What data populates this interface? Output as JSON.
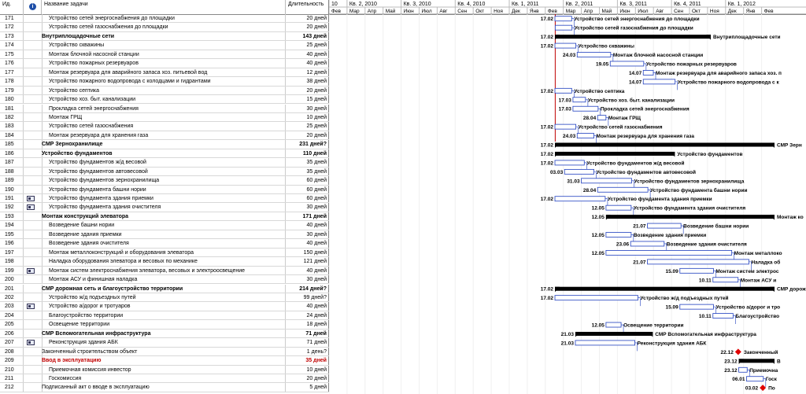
{
  "columns": {
    "id": "Ид.",
    "name": "Название задачи",
    "duration": "Длительность"
  },
  "timescale": {
    "quarters": [
      {
        "label": "10"
      },
      {
        "label": "Кв. 2, 2010"
      },
      {
        "label": "Кв. 3, 2010"
      },
      {
        "label": "Кв. 4, 2010"
      },
      {
        "label": "Кв. 1, 2011"
      },
      {
        "label": "Кв. 2, 2011"
      },
      {
        "label": "Кв. 3, 2011"
      },
      {
        "label": "Кв. 4, 2011"
      },
      {
        "label": "Кв. 1, 2012"
      }
    ],
    "months": [
      "Фев",
      "Мар",
      "Апр",
      "Май",
      "Июн",
      "Июл",
      "Авг",
      "Сен",
      "Окт",
      "Ноя",
      "Дек",
      "Янв",
      "Фев",
      "Мар",
      "Апр",
      "Май",
      "Июн",
      "Июл",
      "Авг",
      "Сен",
      "Окт",
      "Ноя",
      "Дек",
      "Янв",
      "Фев"
    ]
  },
  "rows": [
    {
      "id": "171",
      "name": "Устройство сетей энергоснабжения до площадки",
      "duration": "20 дней",
      "level": 3,
      "bar": {
        "start": "17.02",
        "label": "Устройство сетей энергоснабжения до площадки",
        "type": "task"
      }
    },
    {
      "id": "172",
      "name": "Устройство сетей газоснабжения до площадки",
      "duration": "20 дней",
      "level": 3,
      "bar": {
        "start": "",
        "label": "Устройство сетей газоснабжения до площадки",
        "type": "task"
      }
    },
    {
      "id": "173",
      "name": "Внутриплощадочные сети",
      "duration": "143 дней",
      "level": 2,
      "bold": true,
      "bar": {
        "start": "17.02",
        "label": "Внутриплощадочные сети",
        "type": "summary"
      }
    },
    {
      "id": "174",
      "name": "Устройство скважины",
      "duration": "25 дней",
      "level": 3,
      "bar": {
        "start": "17.02",
        "label": "Устройство скважины",
        "type": "task"
      }
    },
    {
      "id": "175",
      "name": "Монтаж блочной насосной станции",
      "duration": "40 дней",
      "level": 3,
      "bar": {
        "start": "24.03",
        "label": "Монтаж блочной насосной станции",
        "type": "task"
      }
    },
    {
      "id": "176",
      "name": "Устройство пожарных резервуаров",
      "duration": "40 дней",
      "level": 3,
      "bar": {
        "start": "19.05",
        "label": "Устройство пожарных резервуаров",
        "type": "task"
      }
    },
    {
      "id": "177",
      "name": "Монтаж резервуара для аварийного запаса хоз. питьевой вод",
      "duration": "12 дней",
      "level": 3,
      "bar": {
        "start": "14.07",
        "label": "Монтаж резервуара для аварийного запаса хоз. п",
        "type": "task"
      }
    },
    {
      "id": "178",
      "name": "Устройство пожарного водопровода с колодцами и гидрантами",
      "duration": "38 дней",
      "level": 3,
      "bar": {
        "start": "14.07",
        "label": "Устройство пожарного водопровода с к",
        "type": "task"
      }
    },
    {
      "id": "179",
      "name": "Устройство септика",
      "duration": "20 дней",
      "level": 3,
      "bar": {
        "start": "17.02",
        "label": "Устройство септика",
        "type": "task"
      }
    },
    {
      "id": "180",
      "name": "Устройство хоз. быт. канализации",
      "duration": "15 дней",
      "level": 3,
      "bar": {
        "start": "17.03",
        "label": "Устройство хоз. быт. канализации",
        "type": "task"
      }
    },
    {
      "id": "181",
      "name": "Прокладка сетей энергоснабжения",
      "duration": "30 дней",
      "level": 3,
      "bar": {
        "start": "17.03",
        "label": "Прокладка сетей энергоснабжения",
        "type": "task"
      }
    },
    {
      "id": "182",
      "name": "Монтаж ГРЩ",
      "duration": "10 дней",
      "level": 3,
      "bar": {
        "start": "28.04",
        "label": "Монтаж ГРЩ",
        "type": "task"
      }
    },
    {
      "id": "183",
      "name": "Устройство сетей газоснабжения",
      "duration": "25 дней",
      "level": 3,
      "bar": {
        "start": "17.02",
        "label": "Устройство сетей газоснабжения",
        "type": "task"
      }
    },
    {
      "id": "184",
      "name": "Монтаж резервуара для хранения газа",
      "duration": "20 дней",
      "level": 3,
      "bar": {
        "start": "24.03",
        "label": "Монтаж резервуара для хранения газа",
        "type": "task"
      }
    },
    {
      "id": "185",
      "name": "СМР Зернохранилище",
      "duration": "231 дней?",
      "level": 1,
      "bold": true,
      "bar": {
        "start": "17.02",
        "label": "СМР Зерн",
        "type": "summary"
      }
    },
    {
      "id": "186",
      "name": "Устройство фундаментов",
      "duration": "110 дней",
      "level": 2,
      "bold": true,
      "bar": {
        "start": "17.02",
        "label": "Устройство фундаментов",
        "type": "summary"
      }
    },
    {
      "id": "187",
      "name": "Устройство фундаментов ж/д весовой",
      "duration": "35 дней",
      "level": 3,
      "bar": {
        "start": "17.02",
        "label": "Устройство фундаментов ж/д весовой",
        "type": "task"
      }
    },
    {
      "id": "188",
      "name": "Устройство фундаментов автовесовой",
      "duration": "35 дней",
      "level": 3,
      "bar": {
        "start": "03.03",
        "label": "Устройство фундаментов автовесовой",
        "type": "task"
      }
    },
    {
      "id": "189",
      "name": "Устройство фундаментов зернохранилища",
      "duration": "60 дней",
      "level": 3,
      "bar": {
        "start": "31.03",
        "label": "Устройство фундаментов зернохранилища",
        "type": "task"
      }
    },
    {
      "id": "190",
      "name": "Устройство фундамента башни нории",
      "duration": "60 дней",
      "level": 3,
      "bar": {
        "start": "28.04",
        "label": "Устройство фундамента башни нории",
        "type": "task"
      }
    },
    {
      "id": "191",
      "name": "Устройство фундамента здания приемки",
      "duration": "60 дней",
      "level": 3,
      "indicator": true,
      "bar": {
        "start": "17.02",
        "label": "Устройство фундамента здания приемки",
        "type": "task"
      }
    },
    {
      "id": "192",
      "name": "Устройство фундамента здания очистителя",
      "duration": "30 дней",
      "level": 3,
      "indicator": true,
      "bar": {
        "start": "12.05",
        "label": "Устройство фундамента здания очистителя",
        "type": "task"
      }
    },
    {
      "id": "193",
      "name": "Монтаж конструкций элеватора",
      "duration": "171 дней",
      "level": 2,
      "bold": true,
      "bar": {
        "start": "12.05",
        "label": "Монтаж ко",
        "type": "summary"
      }
    },
    {
      "id": "194",
      "name": "Возведение башни нории",
      "duration": "40 дней",
      "level": 3,
      "bar": {
        "start": "21.07",
        "label": "Возведение башни нории",
        "type": "task"
      }
    },
    {
      "id": "195",
      "name": "Возведение здания приемки",
      "duration": "30 дней",
      "level": 3,
      "bar": {
        "start": "12.05",
        "label": "Возведение здания приемки",
        "type": "task"
      }
    },
    {
      "id": "196",
      "name": "Возведение здания очистителя",
      "duration": "40 дней",
      "level": 3,
      "bar": {
        "start": "23.06",
        "label": "Возведение здания очистителя",
        "type": "task"
      }
    },
    {
      "id": "197",
      "name": "Монтаж металлоконструкций и оборудования элеватора",
      "duration": "150 дней",
      "level": 3,
      "bar": {
        "start": "12.05",
        "label": "Монтаж металлоко",
        "type": "task"
      }
    },
    {
      "id": "198",
      "name": "Наладка оборудования элеватора и весовых по механике",
      "duration": "121 дней",
      "level": 3,
      "bar": {
        "start": "21.07",
        "label": "Наладка об",
        "type": "task"
      }
    },
    {
      "id": "199",
      "name": "Монтаж систем электроснабжения элеватора, весовых и электроосвещение",
      "duration": "40 дней",
      "level": 3,
      "indicator": true,
      "bar": {
        "start": "15.09",
        "label": "Монтаж систем электрос",
        "type": "task"
      }
    },
    {
      "id": "200",
      "name": "Монтаж АСУ и финишная наладка",
      "duration": "30 дней",
      "level": 3,
      "bar": {
        "start": "10.11",
        "label": "Монтаж АСУ и",
        "type": "task"
      }
    },
    {
      "id": "201",
      "name": "СМР дорожная сеть и благоустройство территории",
      "duration": "214 дней?",
      "level": 2,
      "bold": true,
      "bar": {
        "start": "17.02",
        "label": "СМР дорожная",
        "type": "summary"
      }
    },
    {
      "id": "202",
      "name": "Устройство ж/д подъездных путей",
      "duration": "99 дней?",
      "level": 3,
      "bar": {
        "start": "17.02",
        "label": "Устройство ж/д подъездных путей",
        "type": "task"
      }
    },
    {
      "id": "203",
      "name": "Устройство а/дорог и тротуаров",
      "duration": "40 дней",
      "level": 3,
      "indicator": true,
      "bar": {
        "start": "15.09",
        "label": "Устройство а/дорог и тро",
        "type": "task"
      }
    },
    {
      "id": "204",
      "name": "Благоустройство территории",
      "duration": "24 дней",
      "level": 3,
      "bar": {
        "start": "10.11",
        "label": "Благоустройство",
        "type": "task"
      }
    },
    {
      "id": "205",
      "name": "Освещение территории",
      "duration": "18 дней",
      "level": 3,
      "bar": {
        "start": "12.05",
        "label": "Освещение территории",
        "type": "task"
      }
    },
    {
      "id": "206",
      "name": "СМР Вспомогательная инфраструктура",
      "duration": "71 дней",
      "level": 1,
      "bold": true,
      "bar": {
        "start": "21.03",
        "label": "СМР Вспомогательная инфраструктура",
        "type": "summary"
      }
    },
    {
      "id": "207",
      "name": "Реконструкция здания АБК",
      "duration": "71 дней",
      "level": 3,
      "indicator": true,
      "bar": {
        "start": "21.03",
        "label": "Реконструкция здания АБК",
        "type": "task"
      }
    },
    {
      "id": "208",
      "name": "Законченный строительством объект",
      "duration": "1 день?",
      "level": 2,
      "bar": {
        "start": "22.12",
        "label": "Законченный",
        "type": "milestone"
      }
    },
    {
      "id": "209",
      "name": "Ввод в эксплуатацию",
      "duration": "35 дней",
      "level": 1,
      "bold": true,
      "red": true,
      "bar": {
        "start": "23.12",
        "label": "В",
        "type": "summary"
      }
    },
    {
      "id": "210",
      "name": "Приемочная комиссия инвестор",
      "duration": "10 дней",
      "level": 3,
      "bar": {
        "start": "23.12",
        "label": "Приемочна",
        "type": "task"
      }
    },
    {
      "id": "211",
      "name": "Госкомиссия",
      "duration": "20 дней",
      "level": 3,
      "bar": {
        "start": "06.01",
        "label": "Госк",
        "type": "task"
      }
    },
    {
      "id": "212",
      "name": "Подписанный акт о вводе в эксплуатацию",
      "duration": "5 дней",
      "level": 2,
      "bar": {
        "start": "03.02",
        "label": "По",
        "type": "milestone"
      }
    }
  ],
  "colors": {
    "task_fill": "#ffffff",
    "task_border": "#1f3fbf",
    "link": "#1f3fbf",
    "summary": "#000000",
    "milestone": "#e00000",
    "progress_line": "#c00000"
  }
}
